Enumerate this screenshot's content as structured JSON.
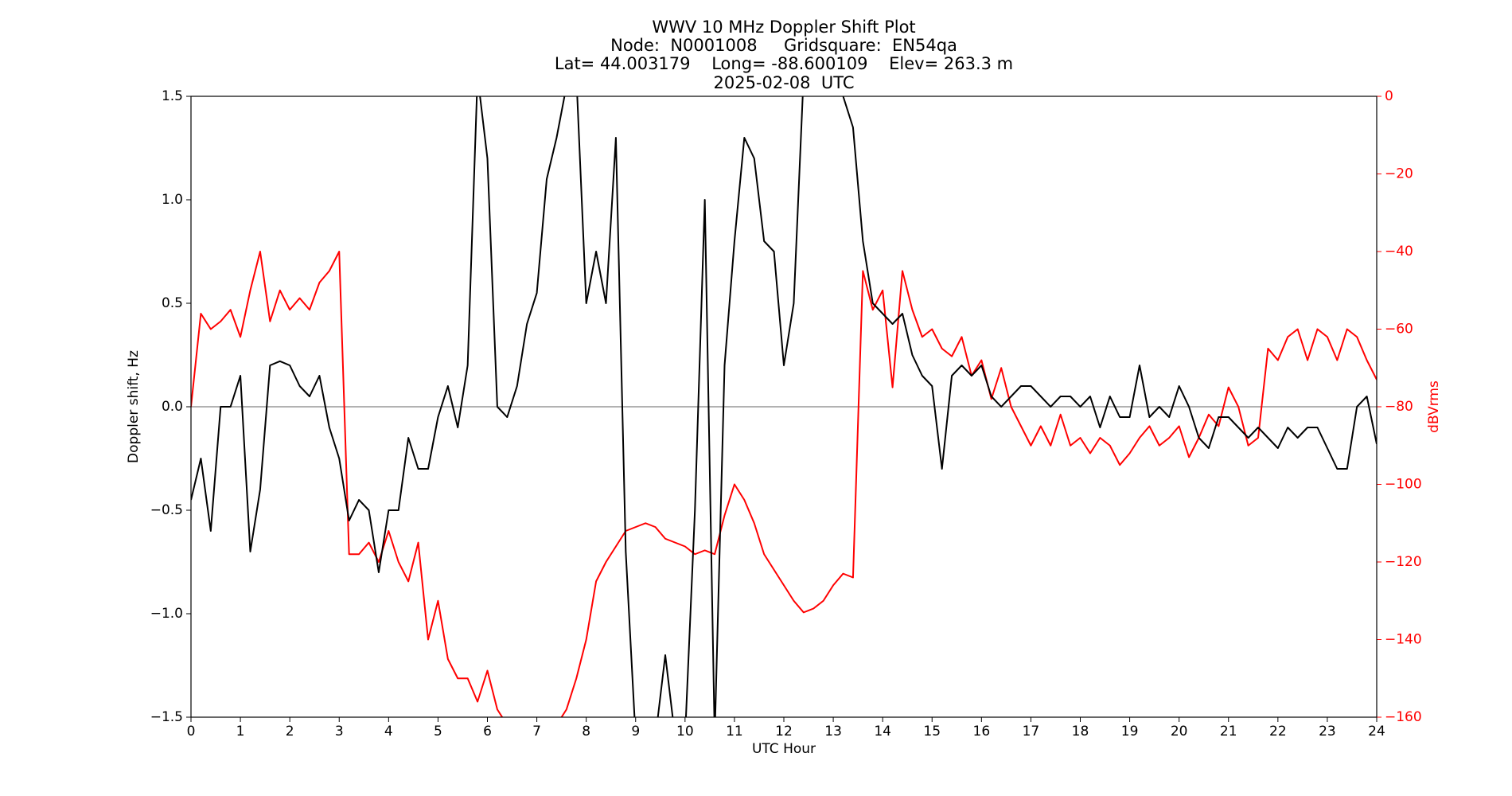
{
  "chart_data": {
    "type": "line",
    "title": [
      "WWV 10 MHz Doppler Shift Plot",
      "Node:  N0001008     Gridsquare:  EN54qa",
      "Lat= 44.003179    Long= -88.600109    Elev= 263.3 m",
      "2025-02-08  UTC"
    ],
    "xlabel": "UTC Hour",
    "ylabel": "Doppler shift, Hz",
    "y2label": "dBVrms",
    "x": [
      0,
      0.2,
      0.4,
      0.6,
      0.8,
      1,
      1.2,
      1.4,
      1.6,
      1.8,
      2,
      2.2,
      2.4,
      2.6,
      2.8,
      3,
      3.2,
      3.4,
      3.6,
      3.8,
      4,
      4.2,
      4.4,
      4.6,
      4.8,
      5,
      5.2,
      5.4,
      5.6,
      5.8,
      6,
      6.2,
      6.4,
      6.6,
      6.8,
      7,
      7.2,
      7.4,
      7.6,
      7.8,
      8,
      8.2,
      8.4,
      8.6,
      8.8,
      9,
      9.2,
      9.4,
      9.6,
      9.8,
      10,
      10.2,
      10.4,
      10.6,
      10.8,
      11,
      11.2,
      11.4,
      11.6,
      11.8,
      12,
      12.2,
      12.4,
      12.6,
      12.8,
      13,
      13.2,
      13.4,
      13.6,
      13.8,
      14,
      14.2,
      14.4,
      14.6,
      14.8,
      15,
      15.2,
      15.4,
      15.6,
      15.8,
      16,
      16.2,
      16.4,
      16.6,
      16.8,
      17,
      17.2,
      17.4,
      17.6,
      17.8,
      18,
      18.2,
      18.4,
      18.6,
      18.8,
      19,
      19.2,
      19.4,
      19.6,
      19.8,
      20,
      20.2,
      20.4,
      20.6,
      20.8,
      21,
      21.2,
      21.4,
      21.6,
      21.8,
      22,
      22.2,
      22.4,
      22.6,
      22.8,
      23,
      23.2,
      23.4,
      23.6,
      23.8,
      24
    ],
    "series": [
      {
        "name": "Doppler shift",
        "color": "#000000",
        "axis": "y",
        "values": [
          -0.45,
          -0.25,
          -0.6,
          0.0,
          0.0,
          0.15,
          -0.7,
          -0.4,
          0.2,
          0.22,
          0.2,
          0.1,
          0.05,
          0.15,
          -0.1,
          -0.25,
          -0.55,
          -0.45,
          -0.5,
          -0.8,
          -0.5,
          -0.5,
          -0.15,
          -0.3,
          -0.3,
          -0.05,
          0.1,
          -0.1,
          0.2,
          1.6,
          1.2,
          0.0,
          -0.05,
          0.1,
          0.4,
          0.55,
          1.1,
          1.3,
          1.55,
          1.6,
          0.5,
          0.75,
          0.5,
          1.3,
          -0.7,
          -1.6,
          -1.6,
          -1.6,
          -1.2,
          -1.6,
          -1.6,
          -0.5,
          1.0,
          -1.6,
          0.2,
          0.8,
          1.3,
          1.2,
          0.8,
          0.75,
          0.2,
          0.5,
          1.6,
          1.6,
          1.6,
          1.6,
          1.5,
          1.35,
          0.8,
          0.5,
          0.45,
          0.4,
          0.45,
          0.25,
          0.15,
          0.1,
          -0.3,
          0.15,
          0.2,
          0.15,
          0.2,
          0.05,
          0.0,
          0.05,
          0.1,
          0.1,
          0.05,
          0.0,
          0.05,
          0.05,
          0.0,
          0.05,
          -0.1,
          0.05,
          -0.05,
          -0.05,
          0.2,
          -0.05,
          0.0,
          -0.05,
          0.1,
          0.0,
          -0.15,
          -0.2,
          -0.05,
          -0.05,
          -0.1,
          -0.15,
          -0.1,
          -0.15,
          -0.2,
          -0.1,
          -0.15,
          -0.1,
          -0.1,
          -0.2,
          -0.3,
          -0.3,
          0.0,
          0.05,
          -0.18
        ]
      },
      {
        "name": "dBVrms",
        "color": "#ff0000",
        "axis": "y2",
        "values": [
          -80,
          -56,
          -60,
          -58,
          -55,
          -62,
          -50,
          -40,
          -58,
          -50,
          -55,
          -52,
          -55,
          -48,
          -45,
          -40,
          -118,
          -118,
          -115,
          -120,
          -112,
          -120,
          -125,
          -115,
          -140,
          -130,
          -145,
          -150,
          -150,
          -156,
          -148,
          -158,
          -162,
          -163,
          -163,
          -162,
          -163,
          -162,
          -158,
          -150,
          -140,
          -125,
          -120,
          -116,
          -112,
          -111,
          -110,
          -111,
          -114,
          -115,
          -116,
          -118,
          -117,
          -118,
          -108,
          -100,
          -104,
          -110,
          -118,
          -122,
          -126,
          -130,
          -133,
          -132,
          -130,
          -126,
          -123,
          -124,
          -45,
          -55,
          -50,
          -75,
          -45,
          -55,
          -62,
          -60,
          -65,
          -67,
          -62,
          -72,
          -68,
          -78,
          -70,
          -80,
          -85,
          -90,
          -85,
          -90,
          -82,
          -90,
          -88,
          -92,
          -88,
          -90,
          -95,
          -92,
          -88,
          -85,
          -90,
          -88,
          -85,
          -93,
          -88,
          -82,
          -85,
          -75,
          -80,
          -90,
          -88,
          -65,
          -68,
          -62,
          -60,
          -68,
          -60,
          -62,
          -68,
          -60,
          -62,
          -68,
          -73
        ]
      }
    ],
    "xlim": [
      0,
      24
    ],
    "xticks": [
      0,
      1,
      2,
      3,
      4,
      5,
      6,
      7,
      8,
      9,
      10,
      11,
      12,
      13,
      14,
      15,
      16,
      17,
      18,
      19,
      20,
      21,
      22,
      23,
      24
    ],
    "ylim": [
      -1.5,
      1.5
    ],
    "yticks": [
      {
        "value": -1.5,
        "label": "−1.5"
      },
      {
        "value": -1.0,
        "label": "−1.0"
      },
      {
        "value": -0.5,
        "label": "−0.5"
      },
      {
        "value": 0,
        "label": "0.0"
      },
      {
        "value": 0.5,
        "label": "0.5"
      },
      {
        "value": 1.0,
        "label": "1.0"
      },
      {
        "value": 1.5,
        "label": "1.5"
      }
    ],
    "y2lim": [
      -160,
      0
    ],
    "y2ticks": [
      {
        "value": -160,
        "label": "−160"
      },
      {
        "value": -140,
        "label": "−140"
      },
      {
        "value": -120,
        "label": "−120"
      },
      {
        "value": -100,
        "label": "−100"
      },
      {
        "value": -80,
        "label": "−80"
      },
      {
        "value": -60,
        "label": "−60"
      },
      {
        "value": -40,
        "label": "−40"
      },
      {
        "value": -20,
        "label": "−20"
      },
      0
    ],
    "y2color": "#ff0000",
    "zero_line": 0,
    "zero_line_color": "#999999"
  }
}
